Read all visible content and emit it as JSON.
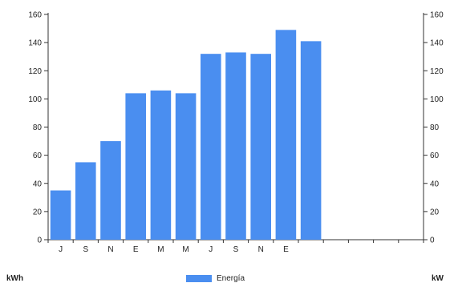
{
  "chart_data": {
    "type": "bar",
    "categories": [
      "J",
      "S",
      "N",
      "E",
      "M",
      "M",
      "J",
      "S",
      "N",
      "E",
      "",
      "",
      "",
      "",
      ""
    ],
    "values": [
      35,
      55,
      70,
      104,
      106,
      104,
      132,
      133,
      132,
      149,
      141,
      null,
      null,
      null,
      null
    ],
    "series": [
      {
        "name": "Energía",
        "values": [
          35,
          55,
          70,
          104,
          106,
          104,
          132,
          133,
          132,
          149,
          141,
          null,
          null,
          null,
          null
        ]
      }
    ],
    "ylim": [
      0,
      160
    ],
    "yticks": [
      0,
      20,
      40,
      60,
      80,
      100,
      120,
      140,
      160
    ],
    "y2lim": [
      0,
      160
    ],
    "y2ticks": [
      0,
      20,
      40,
      60,
      80,
      100,
      120,
      140,
      160
    ],
    "ylabel": "kWh",
    "y2label": "kW",
    "grid": false,
    "legend_position": "bottom-center",
    "bar_color": "#4a8ef0"
  },
  "labels": {
    "left_unit": "kWh",
    "right_unit": "kW",
    "legend_entry": "Energía"
  },
  "colors": {
    "bar": "#4a8ef0",
    "axis": "#333333"
  }
}
